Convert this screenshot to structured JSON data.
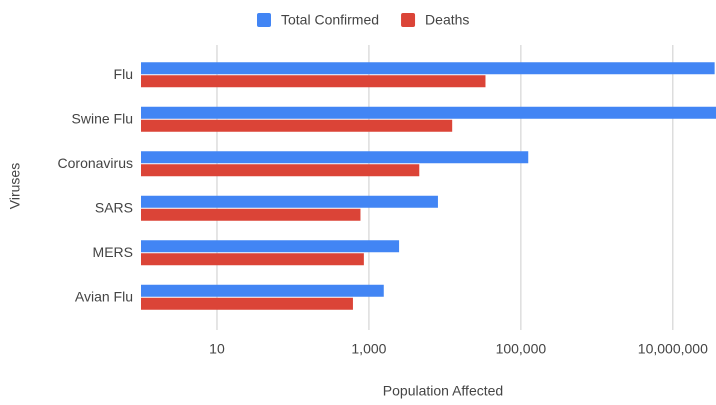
{
  "chart_data": {
    "type": "bar",
    "orientation": "horizontal",
    "x_label": "Population Affected",
    "y_label": "Viruses",
    "categories": [
      "Flu",
      "Swine Flu",
      "Coronavirus",
      "SARS",
      "MERS",
      "Avian Flu"
    ],
    "series": [
      {
        "name": "Total Confirmed",
        "color": "#4285f4",
        "values": [
          35500000,
          60800000,
          125000,
          8098,
          2494,
          1568
        ]
      },
      {
        "name": "Deaths",
        "color": "#db4437",
        "values": [
          34200,
          12469,
          4600,
          774,
          858,
          616
        ]
      }
    ],
    "xscale": "log",
    "xlim": [
      1,
      37000000
    ],
    "xticks": [
      10,
      {
        "value": 1000,
        "label": "1,000"
      },
      {
        "value": 100000,
        "label": "100,000"
      },
      {
        "value": 10000000,
        "label": "10,000,000"
      }
    ],
    "grid": true,
    "legend": "top"
  }
}
